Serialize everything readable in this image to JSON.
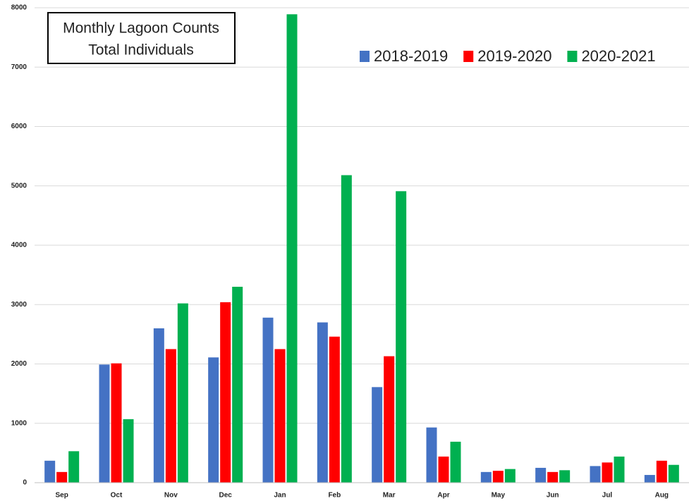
{
  "chart_data": {
    "type": "bar",
    "title": "Monthly Lagoon Counts",
    "subtitle": "Total Individuals",
    "categories": [
      "Sep",
      "Oct",
      "Nov",
      "Dec",
      "Jan",
      "Feb",
      "Mar",
      "Apr",
      "May",
      "Jun",
      "Jul",
      "Aug"
    ],
    "series": [
      {
        "name": "2018-2019",
        "color": "#4472c4",
        "values": [
          370,
          1990,
          2600,
          2110,
          2780,
          2700,
          1610,
          930,
          180,
          250,
          280,
          130
        ]
      },
      {
        "name": "2019-2020",
        "color": "#ff0000",
        "values": [
          180,
          2010,
          2250,
          3040,
          2250,
          2460,
          2130,
          440,
          200,
          180,
          340,
          370
        ]
      },
      {
        "name": "2020-2021",
        "color": "#00b050",
        "values": [
          530,
          1070,
          3020,
          3300,
          7890,
          5180,
          4910,
          690,
          230,
          210,
          440,
          300
        ]
      }
    ],
    "ylim": [
      0,
      8000
    ],
    "yticks": [
      0,
      1000,
      2000,
      3000,
      4000,
      5000,
      6000,
      7000,
      8000
    ],
    "grid": true,
    "legend": "top-right"
  }
}
